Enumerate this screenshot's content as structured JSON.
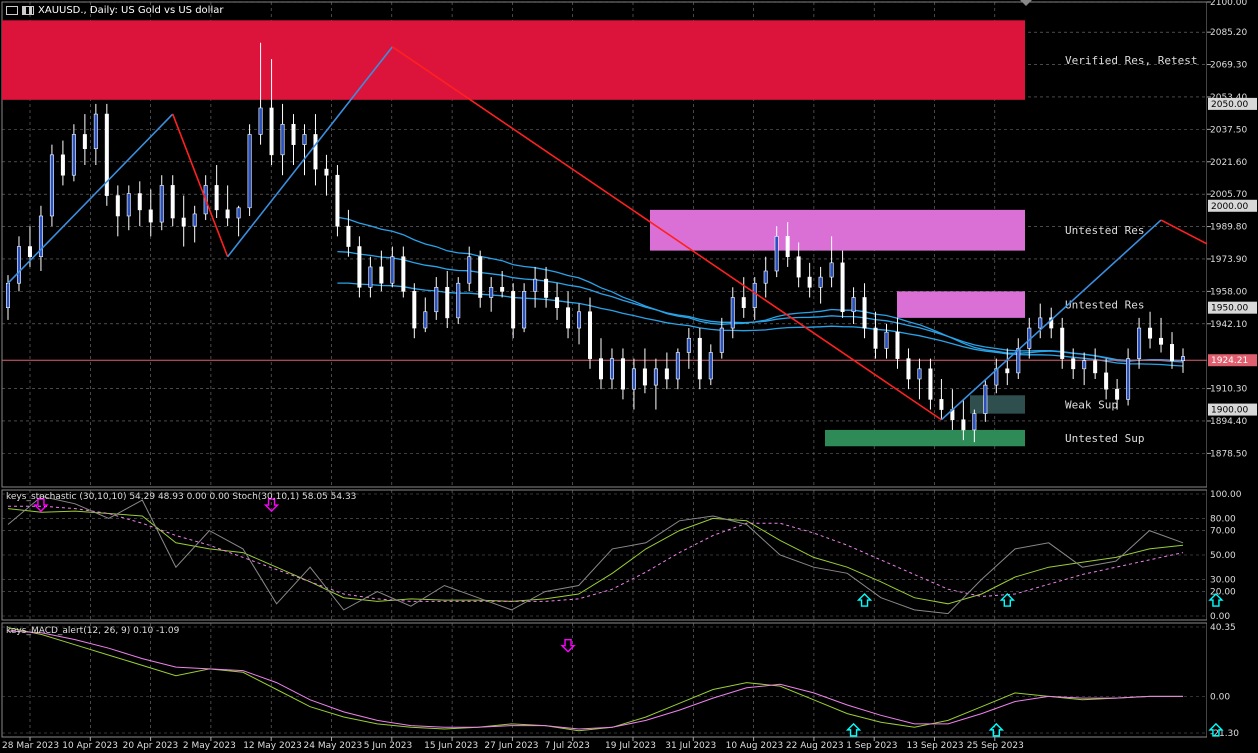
{
  "header": {
    "symbol_title": "XAUUSD., Daily: US Gold vs US dollar"
  },
  "colors": {
    "bull_candle": "#2a52be",
    "bear_candle": "#ffffff",
    "zigzag_up": "#3a8fe0",
    "zigzag_down": "#ff2020",
    "ma_blue": "#29a3e8",
    "ma_red": "#e03040",
    "zone_verified": "#dc143c",
    "zone_untested_res": "#da70d6",
    "zone_weak_sup": "#2f4f4f",
    "zone_untested_sup": "#2e8b57",
    "price_line": "#e06070"
  },
  "chart_data": [
    {
      "type": "candlestick",
      "title": "XAUUSD., Daily: US Gold vs US dollar",
      "ylim": [
        1862,
        2100
      ],
      "y_ticks": [
        "2100.00",
        "2085.20",
        "2069.30",
        "2053.40",
        "2037.50",
        "2021.60",
        "2005.70",
        "1989.80",
        "1973.90",
        "1958.00",
        "1942.10",
        "1910.30",
        "1894.40",
        "1878.50"
      ],
      "y_tick_values": [
        2100.0,
        2085.2,
        2069.3,
        2053.4,
        2037.5,
        2021.6,
        2005.7,
        1989.8,
        1973.9,
        1958.0,
        1942.1,
        1910.3,
        1894.4,
        1878.5
      ],
      "price_labels": [
        {
          "text": "2050.00",
          "value": 2050.0
        },
        {
          "text": "2000.00",
          "value": 2000.0
        },
        {
          "text": "1950.00",
          "value": 1950.0
        },
        {
          "text": "1924.21",
          "value": 1924.21
        },
        {
          "text": "1900.00",
          "value": 1900.0
        }
      ],
      "x_ticks": [
        "28 Mar 2023",
        "10 Apr 2023",
        "20 Apr 2023",
        "2 May 2023",
        "12 May 2023",
        "24 May 2023",
        "5 Jun 2023",
        "15 Jun 2023",
        "27 Jun 2023",
        "7 Jul 2023",
        "19 Jul 2023",
        "31 Jul 2023",
        "10 Aug 2023",
        "22 Aug 2023",
        "1 Sep 2023",
        "13 Sep 2023",
        "25 Sep 2023"
      ],
      "candles": [
        [
          1950,
          1966,
          1944,
          1962
        ],
        [
          1962,
          1985,
          1958,
          1980
        ],
        [
          1980,
          1990,
          1970,
          1975
        ],
        [
          1975,
          2000,
          1968,
          1995
        ],
        [
          1995,
          2030,
          1990,
          2025
        ],
        [
          2025,
          2032,
          2010,
          2015
        ],
        [
          2015,
          2040,
          2012,
          2035
        ],
        [
          2035,
          2045,
          2020,
          2028
        ],
        [
          2028,
          2050,
          2020,
          2045
        ],
        [
          2045,
          2050,
          2000,
          2005
        ],
        [
          2005,
          2010,
          1985,
          1995
        ],
        [
          1995,
          2010,
          1988,
          2006
        ],
        [
          2006,
          2012,
          1990,
          1998
        ],
        [
          1998,
          2008,
          1985,
          1992
        ],
        [
          1992,
          2015,
          1988,
          2010
        ],
        [
          2010,
          2015,
          1990,
          1994
        ],
        [
          1994,
          2005,
          1980,
          1990
        ],
        [
          1990,
          2000,
          1982,
          1996
        ],
        [
          1996,
          2015,
          1993,
          2010
        ],
        [
          2010,
          2020,
          1994,
          1998
        ],
        [
          1998,
          2010,
          1990,
          1994
        ],
        [
          1994,
          2000,
          1985,
          1999
        ],
        [
          1999,
          2040,
          1995,
          2035
        ],
        [
          2035,
          2080,
          2030,
          2048
        ],
        [
          2048,
          2072,
          2020,
          2025
        ],
        [
          2025,
          2050,
          2015,
          2040
        ],
        [
          2040,
          2045,
          2020,
          2030
        ],
        [
          2030,
          2040,
          2015,
          2035
        ],
        [
          2035,
          2045,
          2010,
          2018
        ],
        [
          2018,
          2025,
          2005,
          2015
        ],
        [
          2015,
          2020,
          1985,
          1990
        ],
        [
          1990,
          1998,
          1975,
          1980
        ],
        [
          1980,
          1985,
          1955,
          1960
        ],
        [
          1960,
          1975,
          1955,
          1970
        ],
        [
          1970,
          1978,
          1958,
          1962
        ],
        [
          1962,
          1980,
          1960,
          1975
        ],
        [
          1975,
          1980,
          1955,
          1958
        ],
        [
          1958,
          1962,
          1935,
          1940
        ],
        [
          1940,
          1955,
          1938,
          1948
        ],
        [
          1948,
          1965,
          1944,
          1960
        ],
        [
          1960,
          1968,
          1940,
          1945
        ],
        [
          1945,
          1965,
          1942,
          1962
        ],
        [
          1962,
          1980,
          1958,
          1975
        ],
        [
          1975,
          1978,
          1950,
          1955
        ],
        [
          1955,
          1965,
          1948,
          1960
        ],
        [
          1960,
          1968,
          1955,
          1958
        ],
        [
          1958,
          1962,
          1935,
          1940
        ],
        [
          1940,
          1962,
          1938,
          1958
        ],
        [
          1958,
          1970,
          1950,
          1964
        ],
        [
          1964,
          1970,
          1950,
          1955
        ],
        [
          1955,
          1962,
          1944,
          1950
        ],
        [
          1950,
          1958,
          1935,
          1940
        ],
        [
          1940,
          1952,
          1932,
          1948
        ],
        [
          1948,
          1955,
          1920,
          1925
        ],
        [
          1925,
          1935,
          1910,
          1915
        ],
        [
          1915,
          1930,
          1910,
          1925
        ],
        [
          1925,
          1930,
          1905,
          1910
        ],
        [
          1910,
          1925,
          1900,
          1920
        ],
        [
          1920,
          1930,
          1908,
          1912
        ],
        [
          1912,
          1925,
          1900,
          1920
        ],
        [
          1920,
          1928,
          1910,
          1915
        ],
        [
          1915,
          1930,
          1910,
          1928
        ],
        [
          1928,
          1940,
          1920,
          1935
        ],
        [
          1935,
          1940,
          1910,
          1915
        ],
        [
          1915,
          1932,
          1912,
          1928
        ],
        [
          1928,
          1945,
          1925,
          1940
        ],
        [
          1940,
          1960,
          1935,
          1955
        ],
        [
          1955,
          1965,
          1945,
          1950
        ],
        [
          1950,
          1965,
          1944,
          1962
        ],
        [
          1962,
          1975,
          1955,
          1968
        ],
        [
          1968,
          1990,
          1965,
          1985
        ],
        [
          1985,
          1992,
          1970,
          1975
        ],
        [
          1975,
          1982,
          1960,
          1965
        ],
        [
          1965,
          1972,
          1955,
          1960
        ],
        [
          1960,
          1970,
          1952,
          1965
        ],
        [
          1965,
          1985,
          1960,
          1972
        ],
        [
          1972,
          1978,
          1945,
          1948
        ],
        [
          1948,
          1960,
          1942,
          1955
        ],
        [
          1955,
          1962,
          1935,
          1940
        ],
        [
          1940,
          1948,
          1925,
          1930
        ],
        [
          1930,
          1942,
          1925,
          1938
        ],
        [
          1938,
          1945,
          1920,
          1925
        ],
        [
          1925,
          1930,
          1910,
          1915
        ],
        [
          1915,
          1925,
          1905,
          1920
        ],
        [
          1920,
          1925,
          1900,
          1905
        ],
        [
          1905,
          1915,
          1895,
          1900
        ],
        [
          1900,
          1910,
          1890,
          1895
        ],
        [
          1895,
          1905,
          1885,
          1890
        ],
        [
          1890,
          1900,
          1884,
          1898
        ],
        [
          1898,
          1915,
          1894,
          1912
        ],
        [
          1912,
          1925,
          1908,
          1920
        ],
        [
          1920,
          1930,
          1912,
          1918
        ],
        [
          1918,
          1935,
          1915,
          1930
        ],
        [
          1930,
          1945,
          1925,
          1940
        ],
        [
          1940,
          1952,
          1935,
          1945
        ],
        [
          1945,
          1950,
          1935,
          1940
        ],
        [
          1940,
          1945,
          1920,
          1925
        ],
        [
          1925,
          1930,
          1915,
          1920
        ],
        [
          1920,
          1928,
          1912,
          1924
        ],
        [
          1924,
          1930,
          1915,
          1918
        ],
        [
          1918,
          1925,
          1905,
          1910
        ],
        [
          1910,
          1915,
          1900,
          1905
        ],
        [
          1905,
          1930,
          1902,
          1925
        ],
        [
          1925,
          1945,
          1920,
          1940
        ],
        [
          1940,
          1948,
          1930,
          1935
        ],
        [
          1935,
          1945,
          1928,
          1932
        ],
        [
          1932,
          1938,
          1920,
          1924
        ],
        [
          1924,
          1930,
          1918,
          1926
        ]
      ],
      "zigzag": [
        [
          0,
          1962
        ],
        [
          15,
          2045
        ],
        [
          20,
          1975
        ],
        [
          35,
          2078
        ],
        [
          85,
          1895
        ],
        [
          105,
          1993
        ],
        [
          144,
          1884
        ],
        [
          150,
          1950
        ],
        [
          159,
          1940
        ],
        [
          171,
          1900
        ],
        [
          174,
          1948
        ]
      ],
      "zones": [
        {
          "label": "Verified Res, Retest",
          "top": 2091,
          "bottom": 2052,
          "color": "#dc143c"
        },
        {
          "label": "Untested Res",
          "top": 1998,
          "bottom": 1978,
          "color": "#da70d6"
        },
        {
          "label": "Untested Res",
          "top": 1958,
          "bottom": 1945,
          "color": "#da70d6"
        },
        {
          "label": "Weak Sup",
          "top": 1907,
          "bottom": 1898,
          "color": "#2f4f4f"
        },
        {
          "label": "Untested Sup",
          "top": 1890,
          "bottom": 1882,
          "color": "#2e8b57"
        }
      ],
      "current_price": 1924.21
    },
    {
      "type": "line",
      "title": "keys_stochastic (30,10,10) 54.29 48.93 0.00 0.00 Stoch(30,10,1) 58.05 54.33",
      "ylim": [
        0,
        100
      ],
      "y_ticks": [
        "100.00",
        "80.00",
        "70.00",
        "50.00",
        "30.00",
        "20.00",
        "0.00"
      ],
      "y_tick_values": [
        100,
        80,
        70,
        50,
        30,
        20,
        0
      ],
      "series": [
        {
          "values": [
            88,
            85,
            86,
            84,
            82,
            60,
            55,
            52,
            40,
            28,
            15,
            12,
            14,
            13,
            13,
            12,
            14,
            18,
            35,
            55,
            70,
            80,
            78,
            62,
            48,
            40,
            28,
            15,
            10,
            18,
            32,
            40,
            44,
            48,
            55,
            58
          ]
        },
        {
          "values": [
            90,
            90,
            88,
            84,
            76,
            66,
            58,
            48,
            38,
            28,
            18,
            14,
            12,
            12,
            12,
            12,
            12,
            14,
            22,
            36,
            52,
            66,
            76,
            76,
            68,
            58,
            46,
            34,
            22,
            16,
            18,
            26,
            34,
            40,
            46,
            52
          ]
        },
        {
          "values": [
            75,
            98,
            92,
            80,
            95,
            40,
            70,
            55,
            10,
            40,
            5,
            20,
            8,
            25,
            15,
            5,
            20,
            25,
            55,
            60,
            78,
            82,
            75,
            50,
            40,
            35,
            15,
            5,
            2,
            30,
            55,
            60,
            40,
            45,
            70,
            60
          ]
        }
      ],
      "signals_up": [
        78,
        91,
        110,
        173
      ],
      "signals_down": [
        3,
        24,
        142
      ]
    },
    {
      "type": "line",
      "title": "keys_MACD_alert(12, 26, 9) 0.10 -1.09",
      "ylim": [
        -21.3,
        40.35
      ],
      "y_ticks": [
        "40.35",
        "0.00",
        "-21.30"
      ],
      "y_tick_values": [
        40.35,
        0,
        -21.3
      ],
      "series": [
        {
          "values": [
            40,
            36,
            30,
            24,
            18,
            12,
            16,
            14,
            4,
            -6,
            -12,
            -16,
            -18,
            -19,
            -18,
            -16,
            -17,
            -20,
            -18,
            -12,
            -4,
            4,
            8,
            6,
            -2,
            -10,
            -15,
            -18,
            -14,
            -6,
            2,
            0,
            -2,
            -1,
            0,
            0
          ]
        },
        {
          "values": [
            38,
            37,
            33,
            28,
            22,
            17,
            16,
            15,
            8,
            -2,
            -9,
            -14,
            -17,
            -18,
            -18,
            -17,
            -17,
            -19,
            -18,
            -14,
            -8,
            -1,
            5,
            7,
            2,
            -5,
            -11,
            -16,
            -16,
            -10,
            -3,
            0,
            -1,
            -1,
            0,
            0
          ]
        }
      ],
      "signals_up": [
        77,
        90,
        110,
        169,
        196
      ],
      "signals_down": [
        51,
        139
      ]
    }
  ],
  "zone_texts": {
    "verified": "Verified Res, Retest",
    "untested_res_1": "Untested Res",
    "untested_res_2": "Untested Res",
    "weak_sup": "Weak Sup",
    "untested_sup": "Untested Sup"
  }
}
